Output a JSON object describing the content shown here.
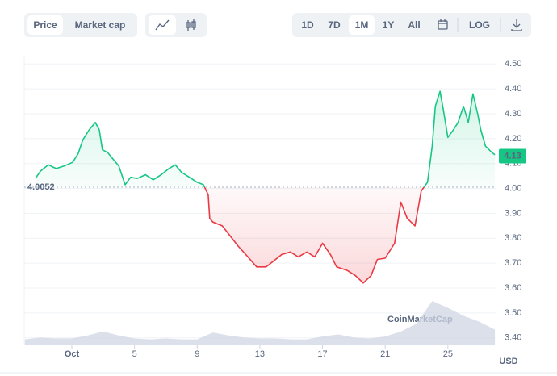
{
  "controls": {
    "metric": [
      "Price",
      "Market cap"
    ],
    "ranges": [
      "1D",
      "7D",
      "1M",
      "1Y",
      "All"
    ],
    "scale": "LOG",
    "active_metric": 0,
    "active_range": 2
  },
  "chart_data": {
    "type": "line",
    "x": [
      -1.33,
      -1.0,
      -0.5,
      0.0,
      0.5,
      1.05,
      1.4,
      1.7,
      2.1,
      2.5,
      2.75,
      2.95,
      3.27,
      3.6,
      4.0,
      4.4,
      4.75,
      5.17,
      5.7,
      6.2,
      6.7,
      7.2,
      7.6,
      8.0,
      8.5,
      9.0,
      9.4,
      9.7,
      9.8,
      10.0,
      10.6,
      11.1,
      11.6,
      12.1,
      12.8,
      13.4,
      13.9,
      14.4,
      14.95,
      15.45,
      16.0,
      16.5,
      17.0,
      17.5,
      17.9,
      18.6,
      19.1,
      19.6,
      20.1,
      20.5,
      21.0,
      21.6,
      22.0,
      22.4,
      22.9,
      23.3,
      23.7,
      24.0,
      24.2,
      24.5,
      24.7,
      25.0,
      25.35,
      25.65,
      26.0,
      26.3,
      26.6,
      26.9,
      27.1,
      27.4,
      27.8,
      28.0
    ],
    "series": [
      {
        "name": "Price",
        "values": [
          4.04,
          4.07,
          4.095,
          4.08,
          4.09,
          4.105,
          4.14,
          4.195,
          4.235,
          4.265,
          4.235,
          4.155,
          4.145,
          4.12,
          4.09,
          4.015,
          4.045,
          4.04,
          4.055,
          4.035,
          4.055,
          4.08,
          4.095,
          4.065,
          4.045,
          4.025,
          4.015,
          3.975,
          3.88,
          3.865,
          3.85,
          3.81,
          3.77,
          3.735,
          3.685,
          3.685,
          3.71,
          3.735,
          3.745,
          3.725,
          3.745,
          3.725,
          3.78,
          3.735,
          3.685,
          3.67,
          3.65,
          3.62,
          3.65,
          3.715,
          3.72,
          3.78,
          3.945,
          3.88,
          3.85,
          3.99,
          4.025,
          4.17,
          4.33,
          4.39,
          4.32,
          4.205,
          4.235,
          4.265,
          4.33,
          4.265,
          4.38,
          4.3,
          4.235,
          4.17,
          4.145,
          4.135
        ]
      }
    ],
    "up_color": "#16c784",
    "down_color": "#ea3943",
    "baseline": 4.0052,
    "last_label": "4.13",
    "last_value": 4.13,
    "currency": "USD",
    "watermark": "CoinMarketCap",
    "volume": {
      "x": [
        -2,
        -1,
        0,
        1,
        2,
        3,
        4,
        5,
        6,
        7,
        8,
        9,
        10,
        11,
        12,
        13,
        14,
        15,
        16,
        17,
        18,
        19,
        20,
        21,
        22,
        23,
        24,
        25,
        26,
        27,
        28
      ],
      "values": [
        6,
        8,
        7,
        7,
        10,
        14,
        10,
        7,
        6,
        7,
        6,
        6,
        13,
        10,
        8,
        7,
        7,
        6,
        6,
        9,
        11,
        8,
        7,
        9,
        14,
        22,
        45,
        38,
        30,
        24,
        16
      ]
    },
    "xlim": [
      -2.04,
      28.1
    ],
    "ylim": [
      3.37,
      4.53
    ],
    "xticks": [
      {
        "value": 1,
        "label": "Oct"
      },
      5,
      9,
      13,
      17,
      21,
      25
    ],
    "yticks": [
      {
        "value": 3.4,
        "label": "3.40"
      },
      {
        "value": 3.5,
        "label": "3.50"
      },
      {
        "value": 3.6,
        "label": "3.60"
      },
      {
        "value": 3.7,
        "label": "3.70"
      },
      {
        "value": 3.8,
        "label": "3.80"
      },
      {
        "value": 3.9,
        "label": "3.90"
      },
      {
        "value": 4.0,
        "label": "4.00"
      },
      {
        "value": 4.1,
        "label": "4.10"
      },
      {
        "value": 4.2,
        "label": "4.20"
      },
      {
        "value": 4.3,
        "label": "4.30"
      },
      {
        "value": 4.4,
        "label": "4.40"
      },
      {
        "value": 4.5,
        "label": "4.50"
      }
    ],
    "grid": true
  }
}
